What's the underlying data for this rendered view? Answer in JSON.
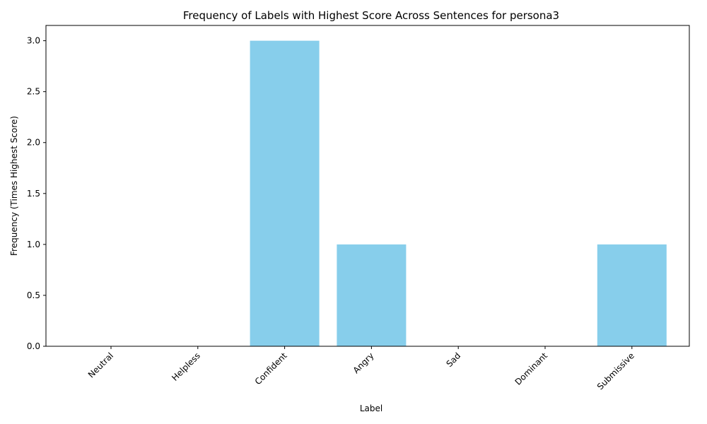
{
  "chart_data": {
    "type": "bar",
    "title": "Frequency of Labels with Highest Score Across Sentences for persona3",
    "xlabel": "Label",
    "ylabel": "Frequency (Times Highest Score)",
    "categories": [
      "Neutral",
      "Helpless",
      "Confident",
      "Angry",
      "Sad",
      "Dominant",
      "Submissive"
    ],
    "values": [
      0,
      0,
      3,
      1,
      0,
      0,
      1
    ],
    "ylim": [
      0,
      3.15
    ],
    "yticks": [
      "0.0",
      "0.5",
      "1.0",
      "1.5",
      "2.0",
      "2.5",
      "3.0"
    ],
    "bar_color": "#87CEEB",
    "grid": false,
    "legend": "none"
  }
}
